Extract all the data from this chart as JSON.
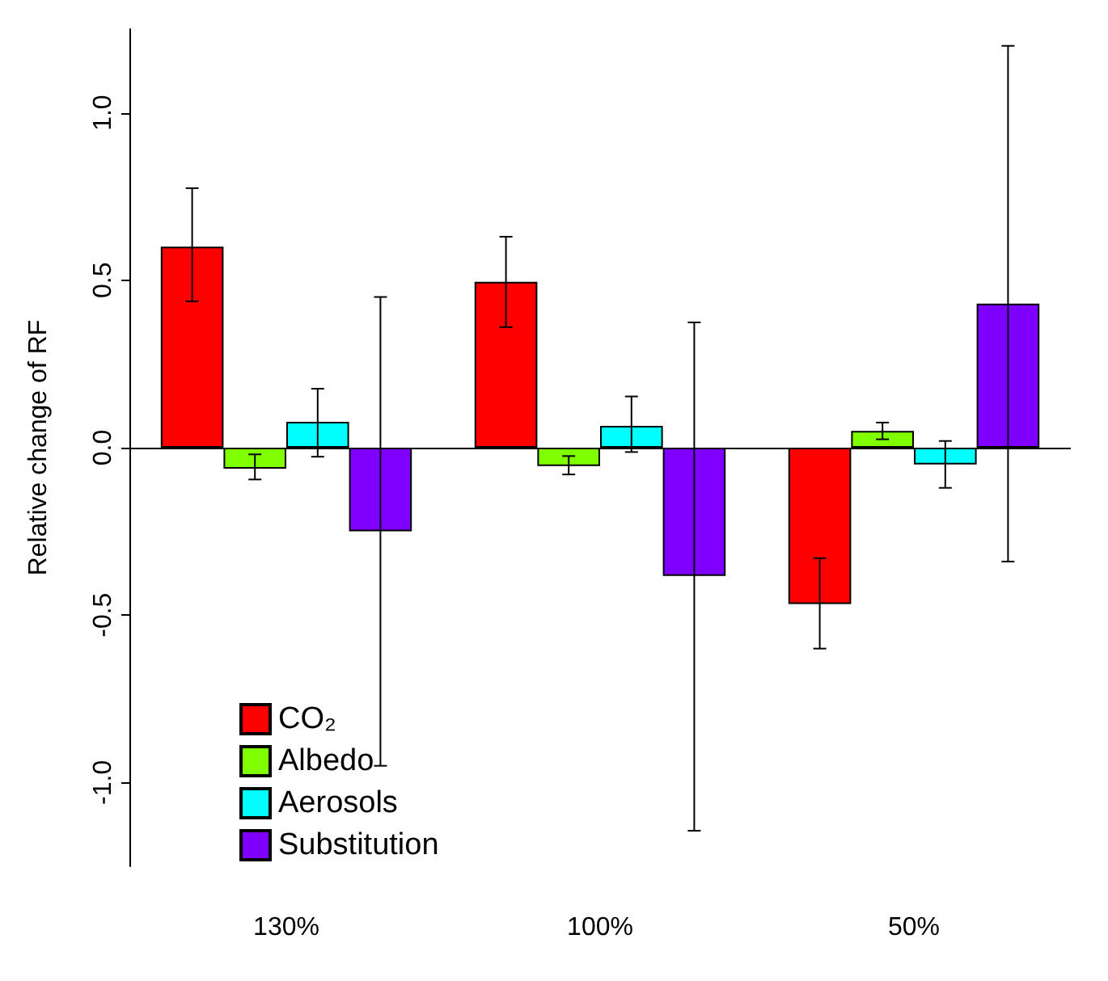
{
  "chart_data": {
    "type": "bar",
    "ylabel": "Relative change of RF",
    "categories": [
      "130%",
      "100%",
      "50%"
    ],
    "series": [
      {
        "name": "CO₂",
        "color": "#ff0000",
        "values": [
          0.6,
          0.495,
          -0.467
        ],
        "errors": [
          [
            0.437,
            0.775
          ],
          [
            0.36,
            0.63
          ],
          [
            -0.6,
            -0.33
          ]
        ]
      },
      {
        "name": "Albedo",
        "color": "#80ff00",
        "values": [
          -0.063,
          -0.055,
          0.05
        ],
        "errors": [
          [
            -0.095,
            -0.02
          ],
          [
            -0.08,
            -0.025
          ],
          [
            0.025,
            0.075
          ]
        ]
      },
      {
        "name": "Aerosols",
        "color": "#00ffff",
        "values": [
          0.077,
          0.065,
          -0.05
        ],
        "errors": [
          [
            -0.027,
            0.176
          ],
          [
            -0.013,
            0.153
          ],
          [
            -0.12,
            0.02
          ]
        ]
      },
      {
        "name": "Substitution",
        "color": "#8000ff",
        "values": [
          -0.25,
          -0.383,
          0.43
        ],
        "errors": [
          [
            -0.95,
            0.45
          ],
          [
            -1.144,
            0.374
          ],
          [
            -0.34,
            1.2
          ]
        ]
      }
    ],
    "ylim": [
      -1.25,
      1.25
    ],
    "yticks": [
      {
        "value": -1,
        "label": "-1.0"
      },
      {
        "value": -0.5,
        "label": "-0.5"
      },
      {
        "value": 0,
        "label": "0.0"
      },
      {
        "value": 0.5,
        "label": "0.5"
      },
      {
        "value": 1,
        "label": "1.0"
      }
    ],
    "ref_lines": [
      {
        "axis": "y",
        "value": 0
      }
    ],
    "grid": false,
    "legend": "bottom left"
  }
}
